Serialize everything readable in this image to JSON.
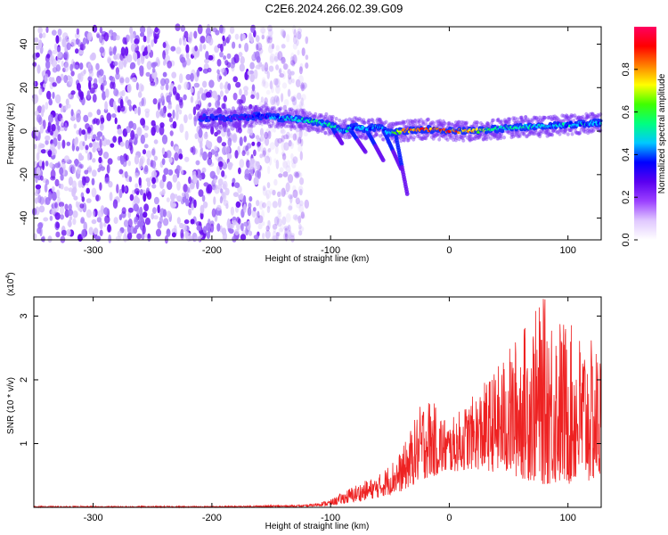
{
  "title": "C2E6.2024.266.02.39.G09",
  "chart_data": [
    {
      "type": "heatmap",
      "title": "C2E6.2024.266.02.39.G09",
      "xlabel": "Height of straight line (km)",
      "ylabel": "Frequency (Hz)",
      "xlim": [
        -350,
        128
      ],
      "ylim": [
        -50,
        48
      ],
      "xticks": [
        -300,
        -200,
        -100,
        0,
        100
      ],
      "yticks": [
        -40,
        -20,
        0,
        20,
        40
      ],
      "colorbar": {
        "label": "Normalized spectral amplitude",
        "range": [
          0,
          1
        ],
        "ticks": [
          0.0,
          0.2,
          0.4,
          0.6,
          0.8
        ],
        "colors": [
          "#ffffff",
          "#e0c8ff",
          "#9b40ff",
          "#5a00f0",
          "#0000ff",
          "#00c8ff",
          "#00ff80",
          "#40ff00",
          "#ffff00",
          "#ff8000",
          "#ff0000",
          "#ff0060"
        ]
      },
      "trace": {
        "x": [
          -210,
          -180,
          -160,
          -140,
          -120,
          -100,
          -90,
          -80,
          -70,
          -60,
          -50,
          -40,
          -20,
          0,
          20,
          40,
          60,
          80,
          100,
          128
        ],
        "freq": [
          6,
          6,
          7,
          6,
          5,
          3,
          0,
          2,
          1,
          2,
          -1,
          0,
          1,
          0,
          0,
          1,
          2,
          2,
          3,
          4
        ],
        "amplitude": [
          0.25,
          0.25,
          0.3,
          0.45,
          0.55,
          0.5,
          0.45,
          0.45,
          0.4,
          0.45,
          0.4,
          0.85,
          0.9,
          0.9,
          0.8,
          0.55,
          0.5,
          0.45,
          0.45,
          0.4
        ]
      },
      "noise_region": {
        "x": [
          -350,
          -130
        ],
        "amplitude": 0.2
      }
    },
    {
      "type": "line",
      "xlabel": "Height of straight line (km)",
      "ylabel": "SNR (10 * v/v)",
      "y_multiplier": "(x10",
      "y_multiplier_exp": "4",
      "y_multiplier_close": ")",
      "xlim": [
        -350,
        128
      ],
      "ylim": [
        0,
        3.3
      ],
      "xticks": [
        -300,
        -200,
        -100,
        0,
        100
      ],
      "yticks": [
        1,
        2,
        3
      ],
      "color": "#ee2222",
      "envelope": {
        "x": [
          -350,
          -200,
          -120,
          -100,
          -80,
          -60,
          -40,
          -20,
          0,
          20,
          40,
          60,
          80,
          100,
          128
        ],
        "upper": [
          0.02,
          0.02,
          0.04,
          0.12,
          0.35,
          0.5,
          0.9,
          1.8,
          1.35,
          1.75,
          2.2,
          2.8,
          3.3,
          2.9,
          2.5
        ],
        "base": [
          0.0,
          0.0,
          0.01,
          0.03,
          0.08,
          0.15,
          0.25,
          0.45,
          0.55,
          0.6,
          0.55,
          0.45,
          0.35,
          0.35,
          0.4
        ]
      }
    }
  ]
}
